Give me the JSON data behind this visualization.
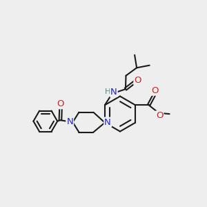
{
  "bg_color": "#eeeeee",
  "bond_color": "#1a1a1a",
  "N_color": "#2222cc",
  "O_color": "#cc2222",
  "H_color": "#4a8a8a",
  "bond_width": 1.5,
  "dbo": 0.06,
  "font_size": 9.5,
  "xlim": [
    0,
    10
  ],
  "ylim": [
    0,
    10
  ]
}
